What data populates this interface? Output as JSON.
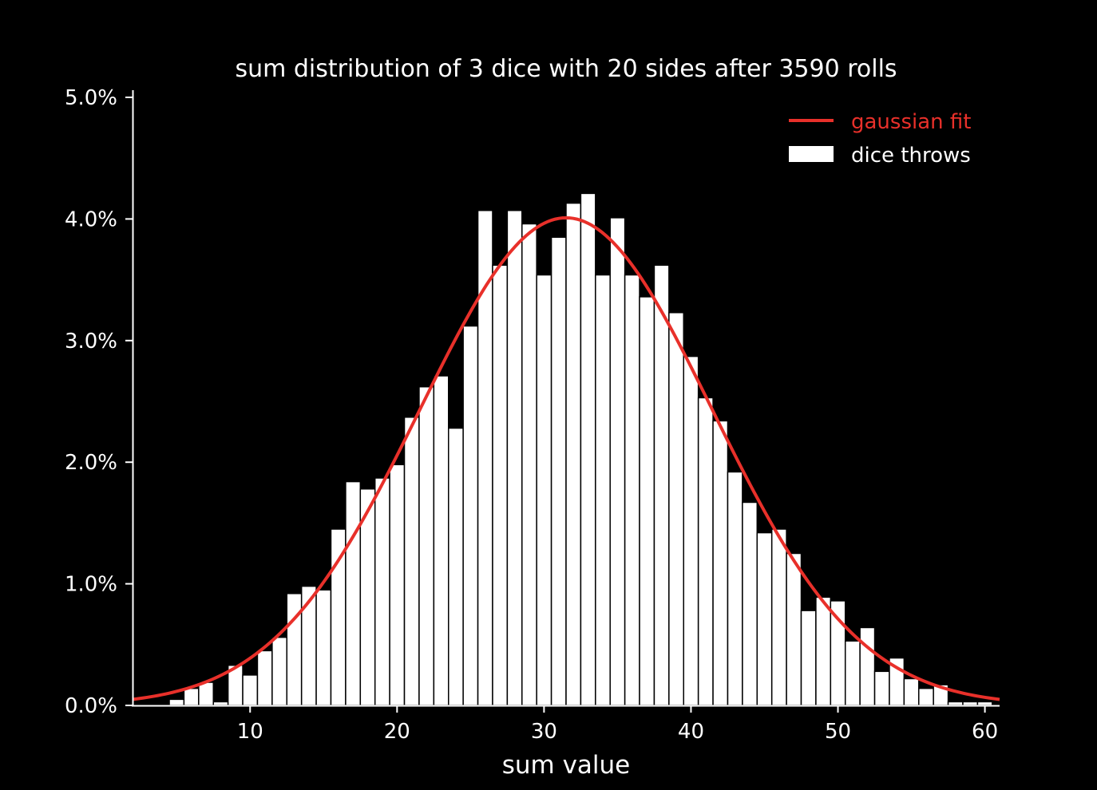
{
  "colors": {
    "background": "#000000",
    "foreground": "#ffffff",
    "fit": "#e8302a",
    "bars": "#ffffff",
    "bar_edge": "#000000"
  },
  "chart_data": {
    "type": "bar",
    "title": "sum distribution of 3 dice with 20 sides after 3590 rolls",
    "xlabel": "sum value",
    "ylabel": "",
    "xlim": [
      2,
      61
    ],
    "ylim": [
      0,
      0.05
    ],
    "xticks": [
      10,
      20,
      30,
      40,
      50,
      60
    ],
    "yticks": [
      0.0,
      0.01,
      0.02,
      0.03,
      0.04,
      0.05
    ],
    "ytick_labels": [
      "0.0%",
      "1.0%",
      "2.0%",
      "3.0%",
      "4.0%",
      "5.0%"
    ],
    "legend_position": "top-right",
    "legend": [
      {
        "label": "gaussian fit",
        "kind": "line"
      },
      {
        "label": "dice throws",
        "kind": "patch"
      }
    ],
    "bars": {
      "name": "dice throws",
      "x": [
        3,
        4,
        5,
        6,
        7,
        8,
        9,
        10,
        11,
        12,
        13,
        14,
        15,
        16,
        17,
        18,
        19,
        20,
        21,
        22,
        23,
        24,
        25,
        26,
        27,
        28,
        29,
        30,
        31,
        32,
        33,
        34,
        35,
        36,
        37,
        38,
        39,
        40,
        41,
        42,
        43,
        44,
        45,
        46,
        47,
        48,
        49,
        50,
        51,
        52,
        53,
        54,
        55,
        56,
        57,
        58,
        59,
        60
      ],
      "values": [
        0.0,
        0.0,
        0.0005,
        0.0014,
        0.0019,
        0.0003,
        0.0033,
        0.0025,
        0.0045,
        0.0056,
        0.0092,
        0.0098,
        0.0095,
        0.0145,
        0.0184,
        0.0178,
        0.0187,
        0.0198,
        0.0237,
        0.0262,
        0.0271,
        0.0228,
        0.0312,
        0.0407,
        0.0362,
        0.0407,
        0.0396,
        0.0354,
        0.0385,
        0.0413,
        0.0421,
        0.0354,
        0.0401,
        0.0354,
        0.0336,
        0.0362,
        0.0323,
        0.0287,
        0.0253,
        0.0234,
        0.0192,
        0.0167,
        0.0142,
        0.0145,
        0.0125,
        0.0078,
        0.0089,
        0.0086,
        0.0053,
        0.0064,
        0.0028,
        0.0039,
        0.0022,
        0.0014,
        0.0017,
        0.0003,
        0.0003,
        0.0003
      ]
    },
    "fit": {
      "name": "gaussian fit",
      "mean": 31.5,
      "sigma": 9.95,
      "x_range": [
        2,
        61
      ]
    }
  }
}
